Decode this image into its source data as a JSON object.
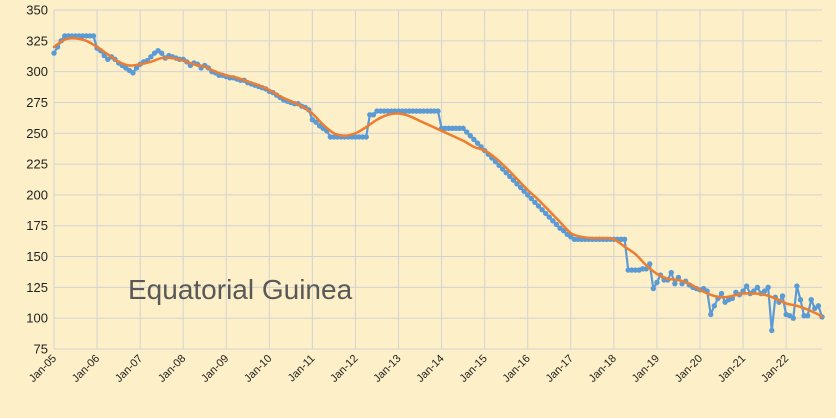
{
  "chart_data": {
    "type": "line",
    "title": "",
    "xlabel": "",
    "ylabel": "",
    "annotation": "Equatorial Guinea",
    "ylim": [
      75,
      350
    ],
    "yticks": [
      75,
      100,
      125,
      150,
      175,
      200,
      225,
      250,
      275,
      300,
      325,
      350
    ],
    "xlim": [
      "2005-01",
      "2022-11"
    ],
    "x_tick_labels": [
      "Jan-05",
      "Jan-06",
      "Jan-07",
      "Jan-08",
      "Jan-09",
      "Jan-10",
      "Jan-11",
      "Jan-12",
      "Jan-13",
      "Jan-14",
      "Jan-15",
      "Jan-16",
      "Jan-17",
      "Jan-18",
      "Jan-19",
      "Jan-20",
      "Jan-21",
      "Jan-22"
    ],
    "grid": "vertical and horizontal",
    "legend": "none",
    "series": [
      {
        "style": "line with markers",
        "color": "#5b9bd5",
        "points": [
          [
            "2005-01",
            315
          ],
          [
            "2005-02",
            320
          ],
          [
            "2005-03",
            325
          ],
          [
            "2005-04",
            329
          ],
          [
            "2005-05",
            329
          ],
          [
            "2005-06",
            329
          ],
          [
            "2005-07",
            329
          ],
          [
            "2005-08",
            329
          ],
          [
            "2005-09",
            329
          ],
          [
            "2005-10",
            329
          ],
          [
            "2005-11",
            329
          ],
          [
            "2005-12",
            329
          ],
          [
            "2006-01",
            319
          ],
          [
            "2006-02",
            317
          ],
          [
            "2006-03",
            313
          ],
          [
            "2006-04",
            310
          ],
          [
            "2006-05",
            312
          ],
          [
            "2006-06",
            310
          ],
          [
            "2006-07",
            307
          ],
          [
            "2006-08",
            305
          ],
          [
            "2006-09",
            303
          ],
          [
            "2006-10",
            301
          ],
          [
            "2006-11",
            299
          ],
          [
            "2006-12",
            303
          ],
          [
            "2007-01",
            306
          ],
          [
            "2007-02",
            308
          ],
          [
            "2007-03",
            309
          ],
          [
            "2007-04",
            312
          ],
          [
            "2007-05",
            315
          ],
          [
            "2007-06",
            317
          ],
          [
            "2007-07",
            315
          ],
          [
            "2007-08",
            311
          ],
          [
            "2007-09",
            313
          ],
          [
            "2007-10",
            312
          ],
          [
            "2007-11",
            311
          ],
          [
            "2007-12",
            310
          ],
          [
            "2008-01",
            310
          ],
          [
            "2008-02",
            308
          ],
          [
            "2008-03",
            305
          ],
          [
            "2008-04",
            307
          ],
          [
            "2008-05",
            306
          ],
          [
            "2008-06",
            303
          ],
          [
            "2008-07",
            305
          ],
          [
            "2008-08",
            303
          ],
          [
            "2008-09",
            300
          ],
          [
            "2008-10",
            299
          ],
          [
            "2008-11",
            297
          ],
          [
            "2008-12",
            297
          ],
          [
            "2009-01",
            296
          ],
          [
            "2009-02",
            295
          ],
          [
            "2009-03",
            295
          ],
          [
            "2009-04",
            294
          ],
          [
            "2009-05",
            293
          ],
          [
            "2009-06",
            293
          ],
          [
            "2009-07",
            291
          ],
          [
            "2009-08",
            290
          ],
          [
            "2009-09",
            289
          ],
          [
            "2009-10",
            288
          ],
          [
            "2009-11",
            287
          ],
          [
            "2009-12",
            286
          ],
          [
            "2010-01",
            284
          ],
          [
            "2010-02",
            283
          ],
          [
            "2010-03",
            281
          ],
          [
            "2010-04",
            279
          ],
          [
            "2010-05",
            277
          ],
          [
            "2010-06",
            276
          ],
          [
            "2010-07",
            275
          ],
          [
            "2010-08",
            274
          ],
          [
            "2010-09",
            274
          ],
          [
            "2010-10",
            272
          ],
          [
            "2010-11",
            271
          ],
          [
            "2010-12",
            269
          ],
          [
            "2011-01",
            261
          ],
          [
            "2011-02",
            259
          ],
          [
            "2011-03",
            256
          ],
          [
            "2011-04",
            254
          ],
          [
            "2011-05",
            252
          ],
          [
            "2011-06",
            247
          ],
          [
            "2011-07",
            247
          ],
          [
            "2011-08",
            247
          ],
          [
            "2011-09",
            247
          ],
          [
            "2011-10",
            247
          ],
          [
            "2011-11",
            247
          ],
          [
            "2011-12",
            247
          ],
          [
            "2012-01",
            247
          ],
          [
            "2012-02",
            247
          ],
          [
            "2012-03",
            247
          ],
          [
            "2012-04",
            247
          ],
          [
            "2012-05",
            265
          ],
          [
            "2012-06",
            265
          ],
          [
            "2012-07",
            268
          ],
          [
            "2012-08",
            268
          ],
          [
            "2012-09",
            268
          ],
          [
            "2012-10",
            268
          ],
          [
            "2012-11",
            268
          ],
          [
            "2012-12",
            268
          ],
          [
            "2013-01",
            268
          ],
          [
            "2013-02",
            268
          ],
          [
            "2013-03",
            268
          ],
          [
            "2013-04",
            268
          ],
          [
            "2013-05",
            268
          ],
          [
            "2013-06",
            268
          ],
          [
            "2013-07",
            268
          ],
          [
            "2013-08",
            268
          ],
          [
            "2013-09",
            268
          ],
          [
            "2013-10",
            268
          ],
          [
            "2013-11",
            268
          ],
          [
            "2013-12",
            268
          ],
          [
            "2014-01",
            254
          ],
          [
            "2014-02",
            254
          ],
          [
            "2014-03",
            254
          ],
          [
            "2014-04",
            254
          ],
          [
            "2014-05",
            254
          ],
          [
            "2014-06",
            254
          ],
          [
            "2014-07",
            254
          ],
          [
            "2014-08",
            251
          ],
          [
            "2014-09",
            248
          ],
          [
            "2014-10",
            245
          ],
          [
            "2014-11",
            242
          ],
          [
            "2014-12",
            239
          ],
          [
            "2015-01",
            236
          ],
          [
            "2015-02",
            233
          ],
          [
            "2015-03",
            230
          ],
          [
            "2015-04",
            227
          ],
          [
            "2015-05",
            224
          ],
          [
            "2015-06",
            221
          ],
          [
            "2015-07",
            218
          ],
          [
            "2015-08",
            215
          ],
          [
            "2015-09",
            212
          ],
          [
            "2015-10",
            209
          ],
          [
            "2015-11",
            206
          ],
          [
            "2015-12",
            203
          ],
          [
            "2016-01",
            200
          ],
          [
            "2016-02",
            197
          ],
          [
            "2016-03",
            194
          ],
          [
            "2016-04",
            191
          ],
          [
            "2016-05",
            188
          ],
          [
            "2016-06",
            185
          ],
          [
            "2016-07",
            182
          ],
          [
            "2016-08",
            179
          ],
          [
            "2016-09",
            176
          ],
          [
            "2016-10",
            173
          ],
          [
            "2016-11",
            171
          ],
          [
            "2016-12",
            168
          ],
          [
            "2017-01",
            166
          ],
          [
            "2017-02",
            164
          ],
          [
            "2017-03",
            164
          ],
          [
            "2017-04",
            164
          ],
          [
            "2017-05",
            164
          ],
          [
            "2017-06",
            164
          ],
          [
            "2017-07",
            164
          ],
          [
            "2017-08",
            164
          ],
          [
            "2017-09",
            164
          ],
          [
            "2017-10",
            164
          ],
          [
            "2017-11",
            164
          ],
          [
            "2017-12",
            164
          ],
          [
            "2018-01",
            164
          ],
          [
            "2018-02",
            164
          ],
          [
            "2018-03",
            164
          ],
          [
            "2018-04",
            164
          ],
          [
            "2018-05",
            139
          ],
          [
            "2018-06",
            139
          ],
          [
            "2018-07",
            139
          ],
          [
            "2018-08",
            139
          ],
          [
            "2018-09",
            140
          ],
          [
            "2018-10",
            140
          ],
          [
            "2018-11",
            144
          ],
          [
            "2018-12",
            124
          ],
          [
            "2019-01",
            129
          ],
          [
            "2019-02",
            135
          ],
          [
            "2019-03",
            131
          ],
          [
            "2019-04",
            131
          ],
          [
            "2019-05",
            137
          ],
          [
            "2019-06",
            128
          ],
          [
            "2019-07",
            133
          ],
          [
            "2019-08",
            128
          ],
          [
            "2019-09",
            130
          ],
          [
            "2019-10",
            127
          ],
          [
            "2019-11",
            125
          ],
          [
            "2019-12",
            124
          ],
          [
            "2020-01",
            123
          ],
          [
            "2020-02",
            124
          ],
          [
            "2020-03",
            122
          ],
          [
            "2020-04",
            103
          ],
          [
            "2020-05",
            110
          ],
          [
            "2020-06",
            116
          ],
          [
            "2020-07",
            120
          ],
          [
            "2020-08",
            113
          ],
          [
            "2020-09",
            115
          ],
          [
            "2020-10",
            116
          ],
          [
            "2020-11",
            121
          ],
          [
            "2020-12",
            119
          ],
          [
            "2021-01",
            122
          ],
          [
            "2021-02",
            126
          ],
          [
            "2021-03",
            120
          ],
          [
            "2021-04",
            122
          ],
          [
            "2021-05",
            125
          ],
          [
            "2021-06",
            120
          ],
          [
            "2021-07",
            122
          ],
          [
            "2021-08",
            125
          ],
          [
            "2021-09",
            90
          ],
          [
            "2021-10",
            117
          ],
          [
            "2021-11",
            113
          ],
          [
            "2021-12",
            118
          ],
          [
            "2022-01",
            103
          ],
          [
            "2022-02",
            102
          ],
          [
            "2022-03",
            100
          ],
          [
            "2022-04",
            126
          ],
          [
            "2022-05",
            115
          ],
          [
            "2022-06",
            102
          ],
          [
            "2022-07",
            102
          ],
          [
            "2022-08",
            115
          ],
          [
            "2022-09",
            108
          ],
          [
            "2022-10",
            110
          ],
          [
            "2022-11",
            101
          ]
        ]
      },
      {
        "style": "smooth line",
        "color": "#ed7d31",
        "points": [
          [
            "2005-01",
            320
          ],
          [
            "2005-04",
            326
          ],
          [
            "2005-07",
            327
          ],
          [
            "2005-10",
            325
          ],
          [
            "2006-01",
            320
          ],
          [
            "2006-04",
            314
          ],
          [
            "2006-07",
            308
          ],
          [
            "2006-10",
            305
          ],
          [
            "2007-01",
            306
          ],
          [
            "2007-04",
            308
          ],
          [
            "2007-07",
            311
          ],
          [
            "2007-10",
            311
          ],
          [
            "2008-01",
            309
          ],
          [
            "2008-04",
            306
          ],
          [
            "2008-07",
            304
          ],
          [
            "2008-10",
            300
          ],
          [
            "2009-01",
            297
          ],
          [
            "2009-04",
            295
          ],
          [
            "2009-07",
            292
          ],
          [
            "2009-10",
            289
          ],
          [
            "2010-01",
            285
          ],
          [
            "2010-04",
            280
          ],
          [
            "2010-07",
            276
          ],
          [
            "2010-10",
            272
          ],
          [
            "2011-01",
            266
          ],
          [
            "2011-04",
            257
          ],
          [
            "2011-07",
            250
          ],
          [
            "2011-10",
            248
          ],
          [
            "2012-01",
            250
          ],
          [
            "2012-04",
            255
          ],
          [
            "2012-07",
            261
          ],
          [
            "2012-10",
            265
          ],
          [
            "2013-01",
            266
          ],
          [
            "2013-04",
            264
          ],
          [
            "2013-07",
            260
          ],
          [
            "2013-10",
            256
          ],
          [
            "2014-01",
            252
          ],
          [
            "2014-04",
            248
          ],
          [
            "2014-07",
            244
          ],
          [
            "2014-10",
            239
          ],
          [
            "2015-01",
            236
          ],
          [
            "2015-04",
            230
          ],
          [
            "2015-07",
            222
          ],
          [
            "2015-10",
            213
          ],
          [
            "2016-01",
            204
          ],
          [
            "2016-04",
            196
          ],
          [
            "2016-07",
            187
          ],
          [
            "2016-10",
            178
          ],
          [
            "2017-01",
            169
          ],
          [
            "2017-04",
            166
          ],
          [
            "2017-07",
            165
          ],
          [
            "2017-10",
            165
          ],
          [
            "2018-01",
            164
          ],
          [
            "2018-04",
            158
          ],
          [
            "2018-07",
            152
          ],
          [
            "2018-10",
            143
          ],
          [
            "2019-01",
            136
          ],
          [
            "2019-04",
            132
          ],
          [
            "2019-07",
            131
          ],
          [
            "2019-10",
            128
          ],
          [
            "2020-01",
            123
          ],
          [
            "2020-04",
            119
          ],
          [
            "2020-07",
            117
          ],
          [
            "2020-10",
            118
          ],
          [
            "2021-01",
            120
          ],
          [
            "2021-04",
            120
          ],
          [
            "2021-07",
            119
          ],
          [
            "2021-10",
            116
          ],
          [
            "2022-01",
            112
          ],
          [
            "2022-04",
            110
          ],
          [
            "2022-07",
            107
          ],
          [
            "2022-10",
            103
          ],
          [
            "2022-11",
            101
          ]
        ]
      }
    ]
  }
}
